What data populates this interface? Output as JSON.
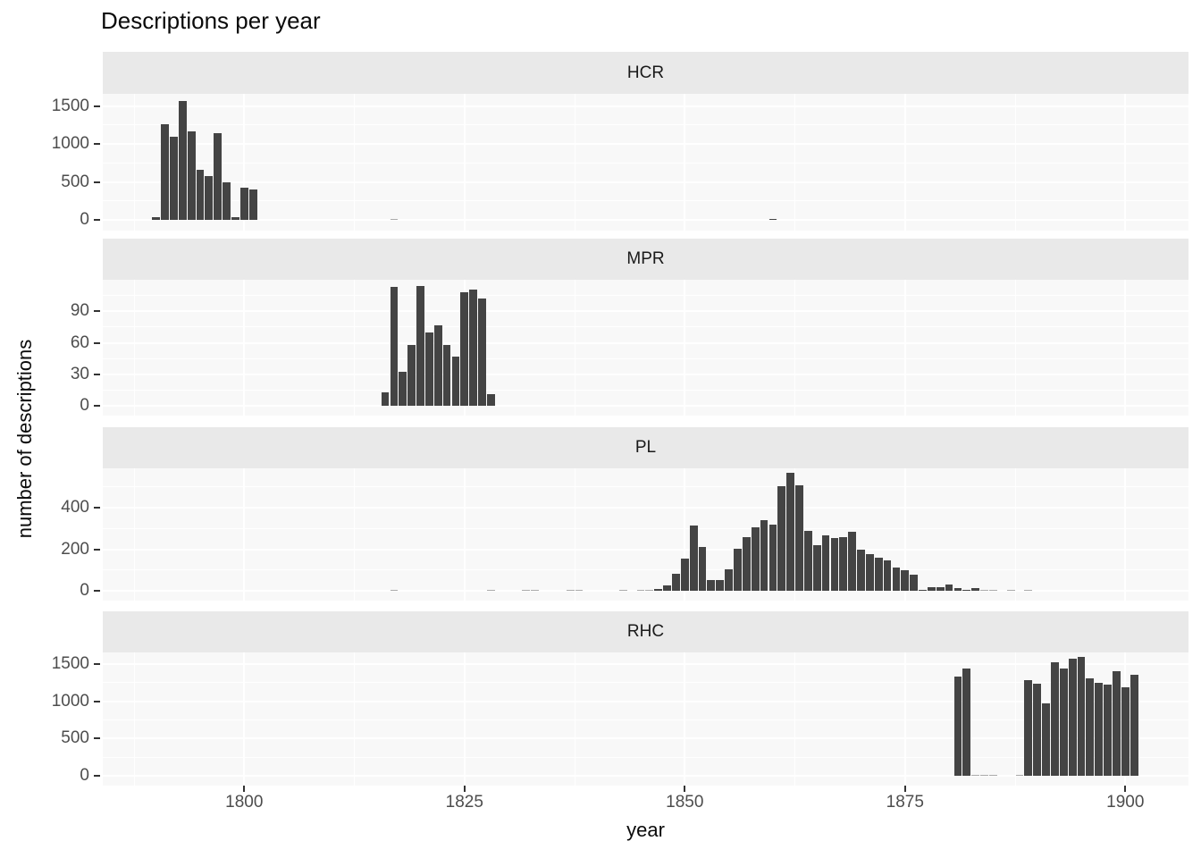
{
  "title": "Descriptions per year",
  "x_axis": {
    "label": "year",
    "ticks": [
      1800,
      1825,
      1850,
      1875,
      1900
    ],
    "minor_ticks": [
      1787.5,
      1812.5,
      1837.5,
      1862.5,
      1887.5
    ],
    "range": [
      1784,
      1907
    ]
  },
  "y_axis": {
    "label": "number of descriptions"
  },
  "colors": {
    "bar": "#444444",
    "strip_bg": "#E9E9E9",
    "panel_bg": "#F8F8F8",
    "grid": "#FFFFFF",
    "axis_text": "#4D4D4D",
    "title_text": "#0A0A0A"
  },
  "chart_data": [
    {
      "type": "bar",
      "facet": "HCR",
      "x": [
        1790,
        1791,
        1792,
        1793,
        1794,
        1795,
        1796,
        1797,
        1798,
        1799,
        1800,
        1801,
        1817,
        1860
      ],
      "values": [
        30,
        1260,
        1090,
        1560,
        1165,
        660,
        580,
        1140,
        495,
        30,
        425,
        400,
        3,
        15
      ],
      "y_ticks": [
        0,
        500,
        1000,
        1500
      ],
      "y_minor_ticks": [
        250,
        750,
        1250
      ],
      "ylim": [
        0,
        1660
      ]
    },
    {
      "type": "bar",
      "facet": "MPR",
      "x": [
        1816,
        1817,
        1818,
        1819,
        1820,
        1821,
        1822,
        1823,
        1824,
        1825,
        1826,
        1827,
        1828
      ],
      "values": [
        13,
        113,
        32,
        58,
        114,
        70,
        77,
        58,
        47,
        108,
        111,
        102,
        11
      ],
      "y_ticks": [
        0,
        30,
        60,
        90
      ],
      "y_minor_ticks": [
        15,
        45,
        75,
        105
      ],
      "ylim": [
        0,
        120
      ]
    },
    {
      "type": "bar",
      "facet": "PL",
      "x": [
        1817,
        1828,
        1832,
        1833,
        1837,
        1838,
        1843,
        1845,
        1846,
        1847,
        1848,
        1849,
        1850,
        1851,
        1852,
        1853,
        1854,
        1855,
        1856,
        1857,
        1858,
        1859,
        1860,
        1861,
        1862,
        1863,
        1864,
        1865,
        1866,
        1867,
        1868,
        1869,
        1870,
        1871,
        1872,
        1873,
        1874,
        1875,
        1876,
        1877,
        1878,
        1879,
        1880,
        1881,
        1882,
        1883,
        1884,
        1885,
        1887,
        1889
      ],
      "values": [
        2,
        2,
        1,
        1,
        1,
        1,
        1,
        2,
        3,
        8,
        26,
        82,
        157,
        316,
        211,
        50,
        50,
        103,
        202,
        259,
        306,
        339,
        320,
        503,
        567,
        510,
        289,
        221,
        266,
        256,
        260,
        286,
        198,
        175,
        161,
        147,
        111,
        101,
        78,
        6,
        18,
        16,
        29,
        12,
        6,
        12,
        3,
        2,
        1,
        1
      ],
      "y_ticks": [
        0,
        200,
        400
      ],
      "y_minor_ticks": [
        100,
        300,
        500
      ],
      "ylim": [
        0,
        590
      ]
    },
    {
      "type": "bar",
      "facet": "RHC",
      "x": [
        1881,
        1882,
        1883,
        1884,
        1885,
        1888,
        1889,
        1890,
        1891,
        1892,
        1893,
        1894,
        1895,
        1896,
        1897,
        1898,
        1899,
        1900,
        1901
      ],
      "values": [
        1330,
        1440,
        8,
        4,
        4,
        5,
        1280,
        1240,
        975,
        1520,
        1440,
        1570,
        1590,
        1310,
        1250,
        1225,
        1400,
        1190,
        1355
      ],
      "y_ticks": [
        0,
        500,
        1000,
        1500
      ],
      "y_minor_ticks": [
        250,
        750,
        1250
      ],
      "ylim": [
        0,
        1655
      ]
    }
  ]
}
